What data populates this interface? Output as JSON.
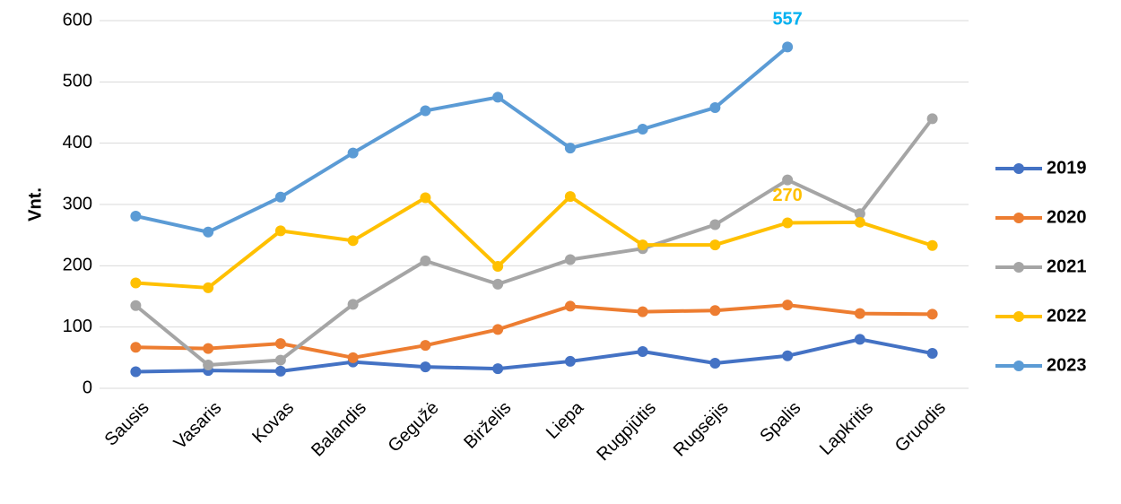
{
  "chart_data": {
    "type": "line",
    "ylabel": "Vnt.",
    "categories": [
      "Sausis",
      "Vasaris",
      "Kovas",
      "Balandis",
      "Gegužė",
      "Birželis",
      "Liepa",
      "Rugpjūtis",
      "Rugsėjis",
      "Spalis",
      "Lapkritis",
      "Gruodis"
    ],
    "series": [
      {
        "name": "2019",
        "color": "#4472c4",
        "values": [
          27,
          29,
          28,
          43,
          35,
          32,
          44,
          60,
          41,
          53,
          80,
          57
        ]
      },
      {
        "name": "2020",
        "color": "#ed7d31",
        "values": [
          67,
          65,
          73,
          50,
          70,
          96,
          134,
          125,
          127,
          136,
          122,
          121
        ]
      },
      {
        "name": "2021",
        "color": "#a5a5a5",
        "values": [
          135,
          38,
          46,
          137,
          208,
          170,
          210,
          228,
          267,
          340,
          285,
          440
        ]
      },
      {
        "name": "2022",
        "color": "#ffc000",
        "values": [
          172,
          164,
          257,
          241,
          311,
          199,
          313,
          234,
          234,
          270,
          271,
          233
        ],
        "value_labels": [
          null,
          null,
          null,
          null,
          null,
          null,
          null,
          null,
          null,
          "270",
          null,
          null
        ],
        "label_color": "#ffc000"
      },
      {
        "name": "2023",
        "color": "#5b9bd5",
        "values": [
          281,
          255,
          312,
          384,
          453,
          475,
          392,
          423,
          458,
          557,
          null,
          null
        ],
        "value_labels": [
          null,
          null,
          null,
          null,
          null,
          null,
          null,
          null,
          null,
          "557",
          null,
          null
        ],
        "label_color": "#00b0f0"
      }
    ],
    "ylim": [
      0,
      600
    ],
    "yticks": [
      0,
      100,
      200,
      300,
      400,
      500,
      600
    ],
    "grid": true,
    "legend": "right"
  }
}
